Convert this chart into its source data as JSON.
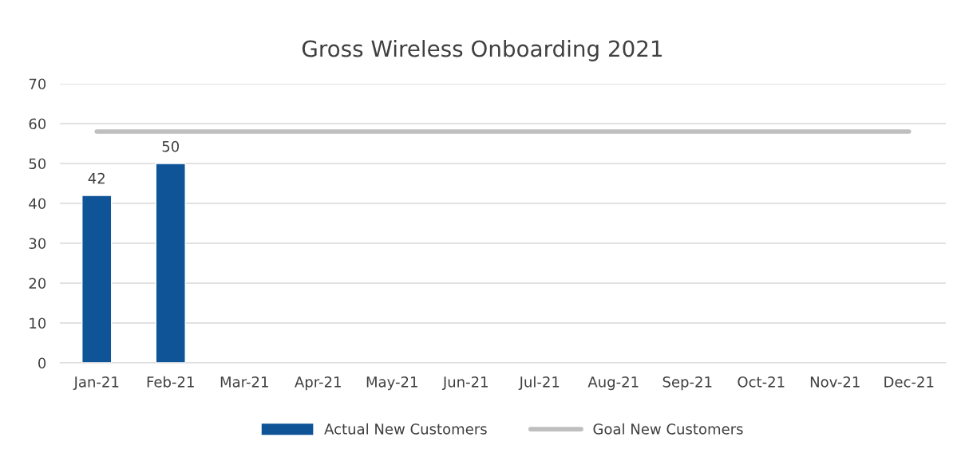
{
  "chart_data": {
    "type": "bar",
    "title": "Gross Wireless Onboarding 2021",
    "categories": [
      "Jan-21",
      "Feb-21",
      "Mar-21",
      "Apr-21",
      "May-21",
      "Jun-21",
      "Jul-21",
      "Aug-21",
      "Sep-21",
      "Oct-21",
      "Nov-21",
      "Dec-21"
    ],
    "series": [
      {
        "name": "Actual New Customers",
        "color": "#0f5496",
        "values": [
          42,
          50,
          null,
          null,
          null,
          null,
          null,
          null,
          null,
          null,
          null,
          null
        ],
        "value_labels": [
          "42",
          "50",
          null,
          null,
          null,
          null,
          null,
          null,
          null,
          null,
          null,
          null
        ]
      },
      {
        "name": "Goal New Customers",
        "type": "line",
        "color": "#bfbfbf",
        "line_style": "solid",
        "marker": "none",
        "values": [
          58,
          58,
          58,
          58,
          58,
          58,
          58,
          58,
          58,
          58,
          58,
          58
        ]
      }
    ],
    "ylim": [
      0,
      70
    ],
    "yticks": [
      0,
      10,
      20,
      30,
      40,
      50,
      60,
      70
    ],
    "grid": "y",
    "legend": "bottom"
  }
}
